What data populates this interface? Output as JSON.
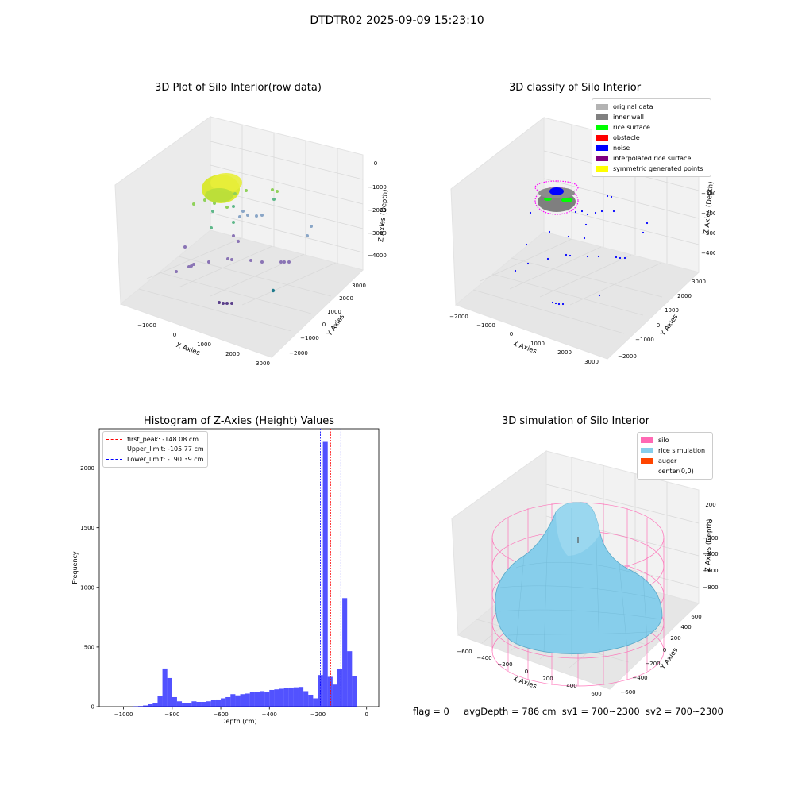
{
  "suptitle": "DTDTR02 2025-09-09 15:23:10",
  "panels": {
    "raw": {
      "title": "3D Plot of Silo Interior(row data)",
      "xlabel": "X Axies",
      "ylabel": "Y Axies",
      "zlabel": "Z Axies (Depth)",
      "xticks": [
        "−1000",
        "0",
        "1000",
        "2000",
        "3000"
      ],
      "yticks": [
        "−2000",
        "−1000",
        "0",
        "1000",
        "2000",
        "3000"
      ],
      "zticks": [
        "0",
        "−1000",
        "−2000",
        "−3000",
        "−4000"
      ]
    },
    "classify": {
      "title": "3D classify of Silo Interior",
      "xlabel": "X Axies",
      "ylabel": "Y Axies",
      "zlabel": "Z Axies (Depth)",
      "xticks": [
        "−2000",
        "−1000",
        "0",
        "1000",
        "2000",
        "3000"
      ],
      "yticks": [
        "−2000",
        "−1000",
        "0",
        "1000",
        "2000",
        "3000"
      ],
      "zticks": [
        "−1000",
        "−2000",
        "−3000",
        "−4000"
      ],
      "legend": [
        {
          "label": "original data",
          "color": "#b3b3b3"
        },
        {
          "label": "inner wall",
          "color": "#808080"
        },
        {
          "label": "rice surface",
          "color": "#00ff00"
        },
        {
          "label": "obstacle",
          "color": "#ff0000"
        },
        {
          "label": "noise",
          "color": "#0000ff"
        },
        {
          "label": "interpolated rice surface",
          "color": "#800080"
        },
        {
          "label": "symmetric generated points",
          "color": "#ffff00"
        }
      ]
    },
    "simulation": {
      "title": "3D simulation of Silo Interior",
      "xlabel": "X Axies",
      "ylabel": "Y Axies",
      "zlabel": "Z Axies (Depth)",
      "xticks": [
        "−600",
        "−400",
        "−200",
        "0",
        "200",
        "400",
        "600"
      ],
      "yticks": [
        "−600",
        "−400",
        "−200",
        "0",
        "200",
        "400",
        "600"
      ],
      "zticks": [
        "200",
        "0",
        "−200",
        "−400",
        "−600",
        "−800"
      ],
      "legend": [
        {
          "label": "silo",
          "color": "#ff69b4"
        },
        {
          "label": "rice simulation",
          "color": "#87ceeb"
        },
        {
          "label": "auger",
          "color": "#ff4500"
        },
        {
          "label": "center(0,0)",
          "color": "#ffffff"
        }
      ]
    }
  },
  "footer": {
    "flag": "flag = 0",
    "avg": "avgDepth = 786 cm",
    "sv1": "sv1 = 700~2300",
    "sv2": "sv2 = 700~2300"
  },
  "chart_data": {
    "type": "bar",
    "title": "Histogram of Z-Axies (Height) Values",
    "xlabel": "Depth (cm)",
    "ylabel": "Frequency",
    "xlim": [
      -1100,
      50
    ],
    "ylim": [
      0,
      2330
    ],
    "xticks": [
      -1000,
      -800,
      -600,
      -400,
      -200,
      0
    ],
    "xtick_labels": [
      "−1000",
      "−800",
      "−600",
      "−400",
      "−200",
      "0"
    ],
    "yticks": [
      0,
      500,
      1000,
      1500,
      2000
    ],
    "bin_width": 20,
    "bins_start": [
      -960,
      -940,
      -920,
      -900,
      -880,
      -860,
      -840,
      -820,
      -800,
      -780,
      -760,
      -740,
      -720,
      -700,
      -680,
      -660,
      -640,
      -620,
      -600,
      -580,
      -560,
      -540,
      -520,
      -500,
      -480,
      -460,
      -440,
      -420,
      -400,
      -380,
      -360,
      -340,
      -320,
      -300,
      -280,
      -260,
      -240,
      -220,
      -200,
      -180,
      -160,
      -140,
      -120,
      -100,
      -80,
      -60,
      -40,
      -20
    ],
    "values": [
      3,
      5,
      10,
      20,
      30,
      90,
      320,
      240,
      80,
      45,
      30,
      28,
      45,
      40,
      40,
      45,
      55,
      60,
      70,
      80,
      105,
      95,
      105,
      110,
      125,
      125,
      130,
      120,
      140,
      145,
      150,
      155,
      160,
      162,
      165,
      130,
      100,
      70,
      265,
      2220,
      250,
      185,
      315,
      910,
      465,
      255,
      0,
      0
    ],
    "color": "#0000ff",
    "lines": [
      {
        "name": "first_peak: -148.08 cm",
        "x": -148.08,
        "color": "#ff0000"
      },
      {
        "name": "Upper_limit: -105.77 cm",
        "x": -105.77,
        "color": "#0000ff"
      },
      {
        "name": "Lower_limit: -190.39 cm",
        "x": -190.39,
        "color": "#0000ff"
      }
    ]
  }
}
